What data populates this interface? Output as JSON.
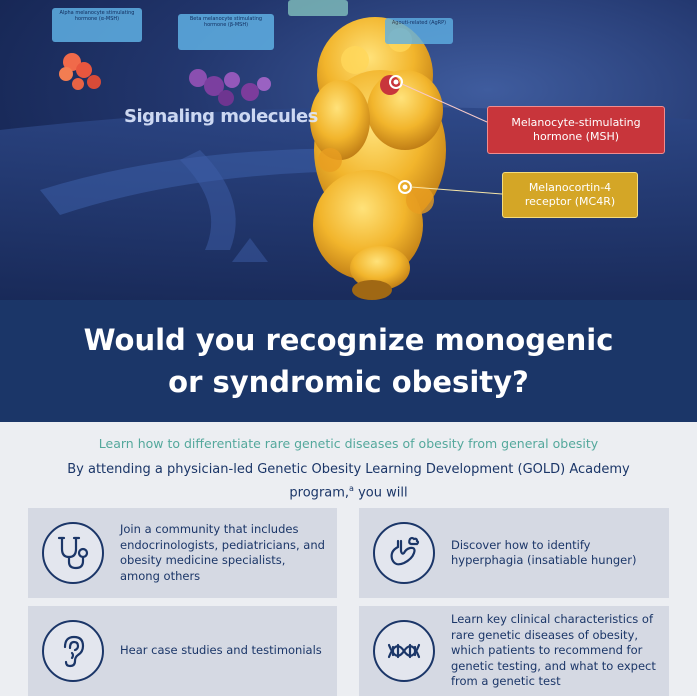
{
  "hero": {
    "tags": [
      "Alpha melanocyte stimulating hormone (α-MSH)",
      "Beta melanocyte stimulating hormone (β-MSH)",
      "",
      "Agouti-related (AgRP)"
    ],
    "signaling_label": "Signaling molecules",
    "callout_msh": "Melanocyte-stimulating hormone (MSH)",
    "callout_mc4r": "Melanocortin-4 receptor (MC4R)"
  },
  "title": {
    "line1": "Would you recognize monogenic",
    "line2": "or syndromic obesity?"
  },
  "subtitle": "Learn how to differentiate rare genetic diseases of obesity from general obesity",
  "intro": {
    "text": "By attending a physician-led Genetic Obesity Learning Development (GOLD) Academy program,",
    "footnote": "a",
    "suffix": " you will"
  },
  "cards": [
    {
      "text": "Join a community that includes endocrinologists, pediatricians, and obesity medicine specialists, among others",
      "icon": "stethoscope-icon"
    },
    {
      "text": "Discover how to identify hyperphagia (insatiable hunger)",
      "icon": "stomach-icon"
    },
    {
      "text": "Hear case studies and testimonials",
      "icon": "ear-icon"
    },
    {
      "text": "Learn key clinical characteristics of rare genetic diseases of obesity, which patients to recommend for genetic testing, and what to expect from a genetic test",
      "icon": "dna-icon"
    }
  ],
  "colors": {
    "navy": "#1b3668",
    "teal": "#54a89c",
    "card_bg": "#d5d9e3",
    "msh_red": "#c8353b",
    "mc4r_gold": "#d4a626",
    "protein_yellow": "#f2b52c"
  }
}
